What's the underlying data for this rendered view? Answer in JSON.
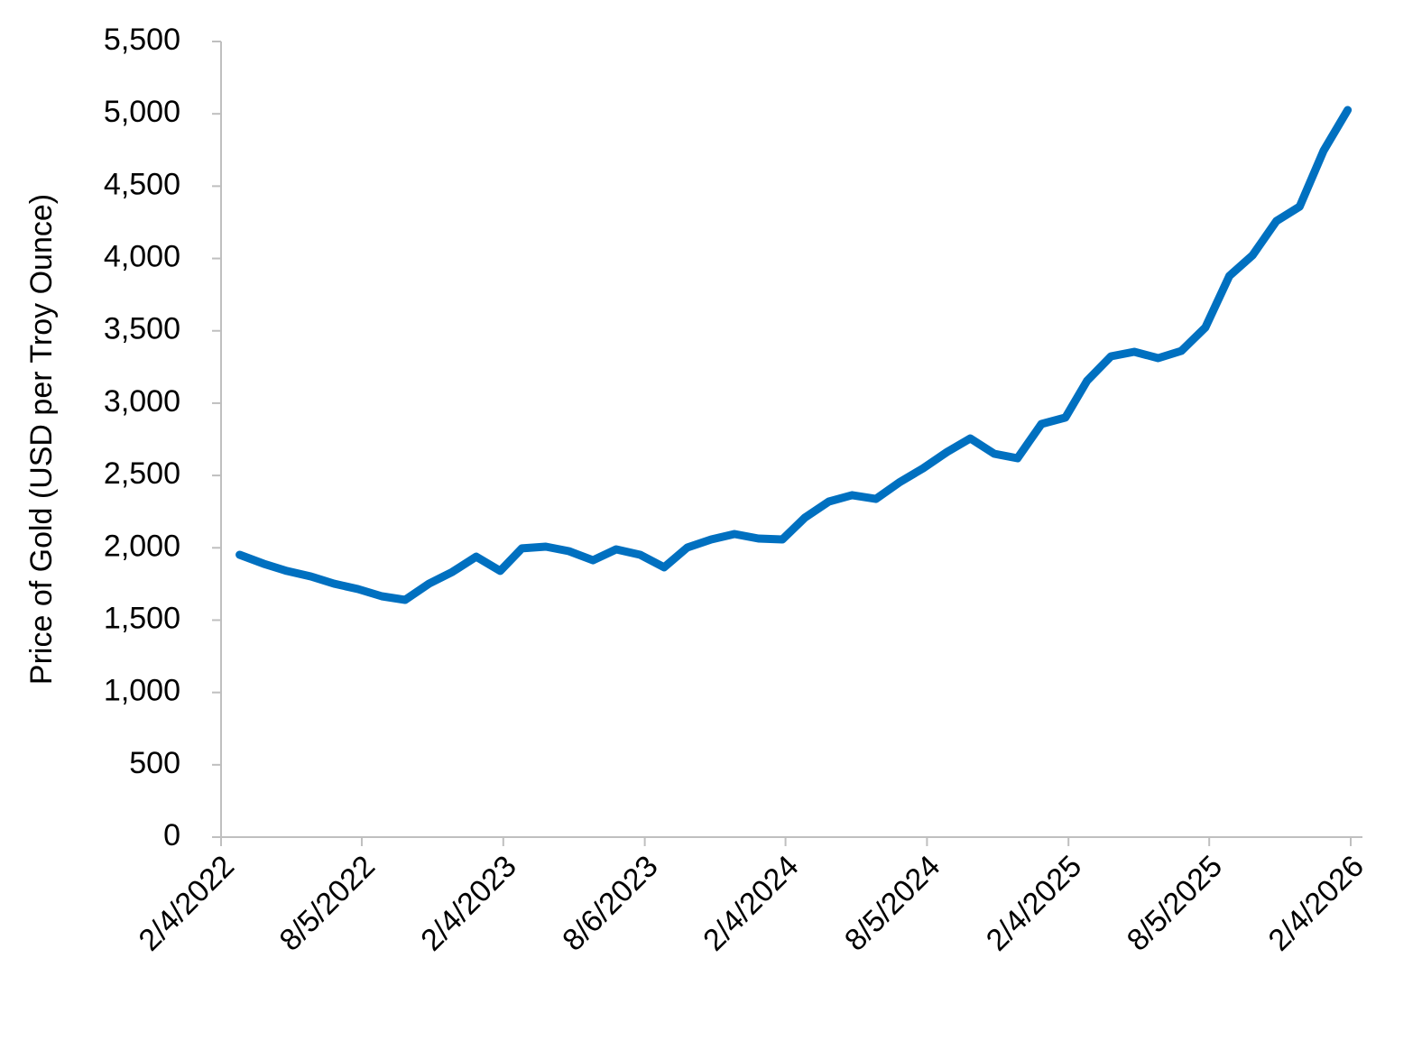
{
  "chart_data": {
    "type": "line",
    "y_label": "Price of Gold (USD per Troy Ounce)",
    "x": [
      "2022-02-28",
      "2022-03-31",
      "2022-04-30",
      "2022-05-31",
      "2022-06-30",
      "2022-07-31",
      "2022-08-31",
      "2022-09-30",
      "2022-10-31",
      "2022-11-30",
      "2022-12-31",
      "2023-01-31",
      "2023-02-28",
      "2023-03-31",
      "2023-04-30",
      "2023-05-31",
      "2023-06-30",
      "2023-07-31",
      "2023-08-31",
      "2023-09-30",
      "2023-10-31",
      "2023-11-30",
      "2023-12-31",
      "2024-01-31",
      "2024-02-29",
      "2024-03-31",
      "2024-04-30",
      "2024-05-31",
      "2024-06-30",
      "2024-07-31",
      "2024-08-31",
      "2024-09-30",
      "2024-10-31",
      "2024-11-30",
      "2024-12-31",
      "2025-01-31",
      "2025-02-28",
      "2025-03-31",
      "2025-04-30",
      "2025-05-31",
      "2025-06-30",
      "2025-07-31",
      "2025-08-31",
      "2025-09-30",
      "2025-10-31",
      "2025-11-30",
      "2025-12-31",
      "2026-01-31"
    ],
    "series": [
      {
        "name": "Gold",
        "color": "#0070c0",
        "values": [
          1952,
          1890,
          1840,
          1802,
          1752,
          1715,
          1665,
          1640,
          1752,
          1833,
          1939,
          1840,
          1996,
          2008,
          1977,
          1914,
          1989,
          1952,
          1865,
          2002,
          2058,
          2095,
          2064,
          2058,
          2208,
          2320,
          2364,
          2338,
          2451,
          2550,
          2663,
          2756,
          2650,
          2619,
          2856,
          2900,
          3155,
          3324,
          3355,
          3311,
          3361,
          3523,
          3879,
          4022,
          4259,
          4359,
          4746,
          5026
        ]
      }
    ],
    "xlim": [
      "2022-02-04",
      "2026-02-04"
    ],
    "xticks": [
      {
        "value": "2022-02-04",
        "label": "2/4/2022"
      },
      {
        "value": "2022-08-05",
        "label": "8/5/2022"
      },
      {
        "value": "2023-02-04",
        "label": "2/4/2023"
      },
      {
        "value": "2023-08-06",
        "label": "8/6/2023"
      },
      {
        "value": "2024-02-04",
        "label": "2/4/2024"
      },
      {
        "value": "2024-08-05",
        "label": "8/5/2024"
      },
      {
        "value": "2025-02-04",
        "label": "2/4/2025"
      },
      {
        "value": "2025-08-05",
        "label": "8/5/2025"
      },
      {
        "value": "2026-02-04",
        "label": "2/4/2026"
      }
    ],
    "ylim": [
      0,
      5500
    ],
    "yticks": [
      0,
      500,
      {
        "value": 1000,
        "label": "1,000"
      },
      {
        "value": 1500,
        "label": "1,500"
      },
      {
        "value": 2000,
        "label": "2,000"
      },
      {
        "value": 2500,
        "label": "2,500"
      },
      {
        "value": 3000,
        "label": "3,000"
      },
      {
        "value": 3500,
        "label": "3,500"
      },
      {
        "value": 4000,
        "label": "4,000"
      },
      {
        "value": 4500,
        "label": "4,500"
      },
      {
        "value": 5000,
        "label": "5,000"
      },
      {
        "value": 5500,
        "label": "5,500"
      }
    ],
    "grid": false
  }
}
